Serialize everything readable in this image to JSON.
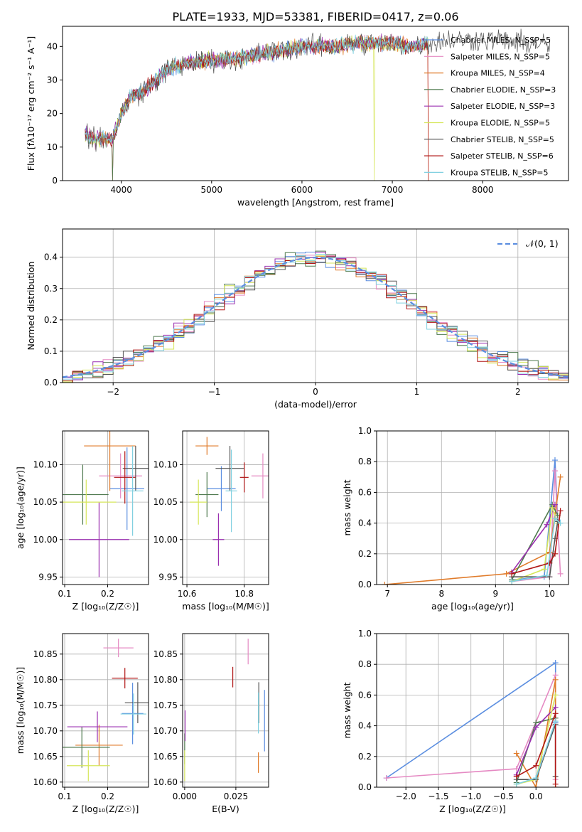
{
  "title": "PLATE=1933, MJD=53381, FIBERID=0417, z=0.06",
  "series_colors": {
    "chabrier_miles": "#5b8ee0",
    "salpeter_miles": "#e58ac3",
    "kroupa_miles": "#e07b2a",
    "chabrier_elodie": "#4f7a4f",
    "salpeter_elodie": "#9a2fb0",
    "kroupa_elodie": "#d6e65a",
    "chabrier_stelib": "#555555",
    "salpeter_stelib": "#b01515",
    "kroupa_stelib": "#80d0e0"
  },
  "legend_labels": [
    "Chabrier MILES, N_SSP=5",
    "Salpeter MILES, N_SSP=5",
    "Kroupa MILES, N_SSP=4",
    "Chabrier ELODIE, N_SSP=3",
    "Salpeter ELODIE, N_SSP=3",
    "Kroupa ELODIE, N_SSP=5",
    "Chabrier STELIB, N_SSP=5",
    "Salpeter STELIB, N_SSP=6",
    "Kroupa STELIB, N_SSP=5"
  ],
  "normal_legend": "𝒩(0, 1)",
  "chart_data": [
    {
      "id": "spectrum",
      "type": "line",
      "xlabel": "wavelength [Angstrom, rest frame]",
      "ylabel": "Flux [fλ10⁻¹⁷ erg cm⁻² s⁻¹ A⁻¹]",
      "xlim": [
        3350,
        8950
      ],
      "ylim": [
        0,
        46
      ],
      "xticks": [
        4000,
        5000,
        6000,
        7000,
        8000
      ],
      "yticks": [
        0,
        10,
        20,
        30,
        40
      ],
      "legend_position": "upper-right",
      "continuum_x": [
        3600,
        3700,
        3800,
        3900,
        4000,
        4100,
        4200,
        4300,
        4400,
        4500,
        4600,
        4800,
        5000,
        5200,
        5400,
        5600,
        5800,
        6000,
        6200,
        6400,
        6600,
        6800,
        7000,
        7200,
        7400,
        7600,
        7800,
        8000,
        8200,
        8400,
        8600,
        8750
      ],
      "continuum_y": [
        14,
        12,
        13,
        12,
        20,
        25,
        26,
        28,
        30,
        33,
        34,
        35,
        36,
        36,
        37,
        38,
        39,
        40,
        40,
        40,
        41,
        41,
        41,
        40,
        41,
        42,
        42,
        42,
        42,
        41,
        41,
        40
      ]
    },
    {
      "id": "residual-histogram",
      "type": "histogram",
      "xlabel": "(data-model)/error",
      "ylabel": "Normed distribution",
      "xlim": [
        -2.5,
        2.5
      ],
      "ylim": [
        0,
        0.49
      ],
      "xticks": [
        -2,
        -1,
        0,
        1,
        2
      ],
      "yticks": [
        0.0,
        0.1,
        0.2,
        0.3,
        0.4
      ],
      "bin_width": 0.1,
      "reference_curve": "normal(0,1)",
      "legend_position": "upper-right"
    },
    {
      "id": "age-vs-z",
      "type": "scatter-errorbar",
      "xlabel": "Z [log₁₀(Z/Z☉)]",
      "ylabel": "age  [log₁₀(age/yr)]",
      "xlim": [
        0.095,
        0.295
      ],
      "ylim": [
        9.94,
        10.145
      ],
      "xticks": [
        0.1,
        0.2
      ],
      "yticks": [
        9.95,
        10.0,
        10.05,
        10.1
      ],
      "points": [
        {
          "series": "chabrier_miles",
          "x": 0.245,
          "y": 10.068,
          "xerr": 0.04,
          "yerr": 0.055
        },
        {
          "series": "salpeter_miles",
          "x": 0.23,
          "y": 10.085,
          "xerr": 0.05,
          "yerr": 0.03
        },
        {
          "series": "kroupa_miles",
          "x": 0.205,
          "y": 10.125,
          "xerr": 0.06,
          "yerr": 0.06
        },
        {
          "series": "chabrier_elodie",
          "x": 0.142,
          "y": 10.06,
          "xerr": 0.06,
          "yerr": 0.04
        },
        {
          "series": "salpeter_elodie",
          "x": 0.18,
          "y": 10.0,
          "xerr": 0.07,
          "yerr": 0.05
        },
        {
          "series": "kroupa_elodie",
          "x": 0.15,
          "y": 10.05,
          "xerr": 0.07,
          "yerr": 0.03
        },
        {
          "series": "chabrier_stelib",
          "x": 0.265,
          "y": 10.095,
          "xerr": 0.03,
          "yerr": 0.03
        },
        {
          "series": "salpeter_stelib",
          "x": 0.24,
          "y": 10.083,
          "xerr": 0.025,
          "yerr": 0.035
        },
        {
          "series": "kroupa_stelib",
          "x": 0.258,
          "y": 10.065,
          "xerr": 0.025,
          "yerr": 0.06
        }
      ]
    },
    {
      "id": "age-vs-mass",
      "type": "scatter-errorbar",
      "xlabel": "mass [log₁₀(M/M☉)]",
      "ylabel": "",
      "xlim": [
        10.585,
        10.885
      ],
      "ylim": [
        9.94,
        10.145
      ],
      "xticks": [
        10.6,
        10.8
      ],
      "yticks": [
        9.95,
        10.0,
        10.05,
        10.1
      ],
      "points": [
        {
          "series": "chabrier_miles",
          "x": 10.72,
          "y": 10.068,
          "xerr": 0.05,
          "yerr": 0.03
        },
        {
          "series": "salpeter_miles",
          "x": 10.865,
          "y": 10.085,
          "xerr": 0.04,
          "yerr": 0.03
        },
        {
          "series": "kroupa_miles",
          "x": 10.67,
          "y": 10.125,
          "xerr": 0.04,
          "yerr": 0.012
        },
        {
          "series": "chabrier_elodie",
          "x": 10.67,
          "y": 10.06,
          "xerr": 0.04,
          "yerr": 0.03
        },
        {
          "series": "salpeter_elodie",
          "x": 10.71,
          "y": 10.0,
          "xerr": 0.02,
          "yerr": 0.035
        },
        {
          "series": "kroupa_elodie",
          "x": 10.64,
          "y": 10.05,
          "xerr": 0.03,
          "yerr": 0.03
        },
        {
          "series": "chabrier_stelib",
          "x": 10.75,
          "y": 10.095,
          "xerr": 0.05,
          "yerr": 0.03
        },
        {
          "series": "salpeter_stelib",
          "x": 10.8,
          "y": 10.083,
          "xerr": 0.015,
          "yerr": 0.02
        },
        {
          "series": "kroupa_stelib",
          "x": 10.755,
          "y": 10.065,
          "xerr": 0.02,
          "yerr": 0.055
        }
      ]
    },
    {
      "id": "mass-weight-vs-age",
      "type": "line",
      "xlabel": "age  [log₁₀(age/yr)]",
      "ylabel": "mass weight",
      "xlim": [
        6.8,
        10.35
      ],
      "ylim": [
        0,
        1.0
      ],
      "xticks": [
        7,
        8,
        9,
        10
      ],
      "yticks": [
        0.0,
        0.2,
        0.4,
        0.6,
        0.8,
        1.0
      ],
      "series": [
        {
          "series": "chabrier_miles",
          "x": [
            9.3,
            9.9,
            10.1,
            10.15
          ],
          "y": [
            0.03,
            0.05,
            0.81,
            0.42
          ]
        },
        {
          "series": "salpeter_miles",
          "x": [
            9.3,
            10.0,
            10.1,
            10.2
          ],
          "y": [
            0.02,
            0.05,
            0.74,
            0.07
          ]
        },
        {
          "series": "kroupa_miles",
          "x": [
            6.95,
            9.2,
            10.0,
            10.2
          ],
          "y": [
            0.0,
            0.07,
            0.21,
            0.7
          ]
        },
        {
          "series": "chabrier_elodie",
          "x": [
            9.3,
            10.05,
            10.15
          ],
          "y": [
            0.03,
            0.52,
            0.45
          ]
        },
        {
          "series": "salpeter_elodie",
          "x": [
            9.3,
            9.95,
            10.1
          ],
          "y": [
            0.08,
            0.39,
            0.52
          ]
        },
        {
          "series": "kroupa_elodie",
          "x": [
            9.3,
            9.9,
            10.05,
            10.15
          ],
          "y": [
            0.02,
            0.1,
            0.5,
            0.4
          ]
        },
        {
          "series": "chabrier_stelib",
          "x": [
            9.3,
            10.0,
            10.1,
            10.15
          ],
          "y": [
            0.05,
            0.05,
            0.3,
            0.41
          ]
        },
        {
          "series": "salpeter_stelib",
          "x": [
            9.3,
            10.0,
            10.1,
            10.2
          ],
          "y": [
            0.07,
            0.14,
            0.2,
            0.48
          ]
        },
        {
          "series": "kroupa_stelib",
          "x": [
            9.3,
            9.95,
            10.1,
            10.2
          ],
          "y": [
            0.02,
            0.06,
            0.43,
            0.4
          ]
        }
      ]
    },
    {
      "id": "mass-vs-z",
      "type": "scatter-errorbar",
      "xlabel": "Z [log₁₀(Z/Z☉)]",
      "ylabel": "mass [log₁₀(M/M☉)]",
      "xlim": [
        0.095,
        0.295
      ],
      "ylim": [
        10.59,
        10.89
      ],
      "xticks": [
        0.1,
        0.2
      ],
      "yticks": [
        10.6,
        10.65,
        10.7,
        10.75,
        10.8,
        10.85
      ],
      "points": [
        {
          "series": "chabrier_miles",
          "x": 0.258,
          "y": 10.734,
          "xerr": 0.025,
          "yerr": 0.06
        },
        {
          "series": "salpeter_miles",
          "x": 0.225,
          "y": 10.862,
          "xerr": 0.035,
          "yerr": 0.018
        },
        {
          "series": "kroupa_miles",
          "x": 0.18,
          "y": 10.672,
          "xerr": 0.055,
          "yerr": 0.04
        },
        {
          "series": "chabrier_elodie",
          "x": 0.14,
          "y": 10.668,
          "xerr": 0.065,
          "yerr": 0.04
        },
        {
          "series": "salpeter_elodie",
          "x": 0.176,
          "y": 10.708,
          "xerr": 0.07,
          "yerr": 0.03
        },
        {
          "series": "kroupa_elodie",
          "x": 0.155,
          "y": 10.632,
          "xerr": 0.05,
          "yerr": 0.03
        },
        {
          "series": "chabrier_stelib",
          "x": 0.27,
          "y": 10.755,
          "xerr": 0.03,
          "yerr": 0.04
        },
        {
          "series": "salpeter_stelib",
          "x": 0.24,
          "y": 10.803,
          "xerr": 0.03,
          "yerr": 0.02
        },
        {
          "series": "kroupa_stelib",
          "x": 0.26,
          "y": 10.733,
          "xerr": 0.03,
          "yerr": 0.04
        }
      ]
    },
    {
      "id": "mass-vs-ebv",
      "type": "scatter-errorbar",
      "xlabel": "E(B-V)",
      "ylabel": "",
      "xlim": [
        -0.001,
        0.041
      ],
      "ylim": [
        10.59,
        10.89
      ],
      "xticks": [
        0.0,
        0.025
      ],
      "yticks": [
        10.6,
        10.65,
        10.7,
        10.75,
        10.8,
        10.85
      ],
      "points": [
        {
          "series": "chabrier_miles",
          "x": 0.039,
          "y": 10.72,
          "xerr": 0,
          "yerr": 0.06
        },
        {
          "series": "salpeter_miles",
          "x": 0.031,
          "y": 10.855,
          "xerr": 0,
          "yerr": 0.025
        },
        {
          "series": "kroupa_miles",
          "x": 0.036,
          "y": 10.638,
          "xerr": 0,
          "yerr": 0.02
        },
        {
          "series": "chabrier_elodie",
          "x": 0.0,
          "y": 10.665,
          "xerr": 0,
          "yerr": 0.03
        },
        {
          "series": "salpeter_elodie",
          "x": 0.0002,
          "y": 10.71,
          "xerr": 0,
          "yerr": 0.03
        },
        {
          "series": "kroupa_elodie",
          "x": 0.0,
          "y": 10.632,
          "xerr": 0,
          "yerr": 0.03
        },
        {
          "series": "chabrier_stelib",
          "x": 0.0362,
          "y": 10.755,
          "xerr": 0,
          "yerr": 0.04
        },
        {
          "series": "salpeter_stelib",
          "x": 0.0235,
          "y": 10.805,
          "xerr": 0,
          "yerr": 0.02
        },
        {
          "series": "kroupa_stelib",
          "x": 0.036,
          "y": 10.735,
          "xerr": 0,
          "yerr": 0.04
        }
      ]
    },
    {
      "id": "mass-weight-vs-z",
      "type": "line",
      "xlabel": "Z [log₁₀(Z/Z☉)]",
      "ylabel": "mass weight",
      "xlim": [
        -2.45,
        0.5
      ],
      "ylim": [
        0,
        1.0
      ],
      "xticks": [
        -2.0,
        -1.5,
        -1.0,
        -0.5,
        0.0
      ],
      "yticks": [
        0.0,
        0.2,
        0.4,
        0.6,
        0.8,
        1.0
      ],
      "series": [
        {
          "series": "chabrier_miles",
          "x": [
            -2.3,
            0.3,
            0.3
          ],
          "y": [
            0.06,
            0.81,
            0.42
          ]
        },
        {
          "series": "salpeter_miles",
          "x": [
            -2.3,
            -0.3,
            0.3,
            0.3
          ],
          "y": [
            0.06,
            0.12,
            0.73,
            0.05
          ]
        },
        {
          "series": "kroupa_miles",
          "x": [
            -0.3,
            0.0,
            0.3,
            0.3
          ],
          "y": [
            0.22,
            0.0,
            0.7,
            0.0
          ]
        },
        {
          "series": "chabrier_elodie",
          "x": [
            -0.3,
            0.0,
            0.3
          ],
          "y": [
            0.03,
            0.42,
            0.45
          ]
        },
        {
          "series": "salpeter_elodie",
          "x": [
            -0.3,
            0.0,
            0.3
          ],
          "y": [
            0.08,
            0.39,
            0.52
          ]
        },
        {
          "series": "kroupa_elodie",
          "x": [
            -0.3,
            0.0,
            0.3
          ],
          "y": [
            0.02,
            0.05,
            0.6
          ]
        },
        {
          "series": "chabrier_stelib",
          "x": [
            -0.3,
            0.0,
            0.3,
            0.3
          ],
          "y": [
            0.05,
            0.05,
            0.41,
            0.07
          ]
        },
        {
          "series": "salpeter_stelib",
          "x": [
            -0.3,
            0.0,
            0.3,
            0.3
          ],
          "y": [
            0.07,
            0.14,
            0.48,
            0.02
          ]
        },
        {
          "series": "kroupa_stelib",
          "x": [
            -0.3,
            0.0,
            0.3
          ],
          "y": [
            0.02,
            0.06,
            0.43
          ]
        }
      ]
    }
  ]
}
